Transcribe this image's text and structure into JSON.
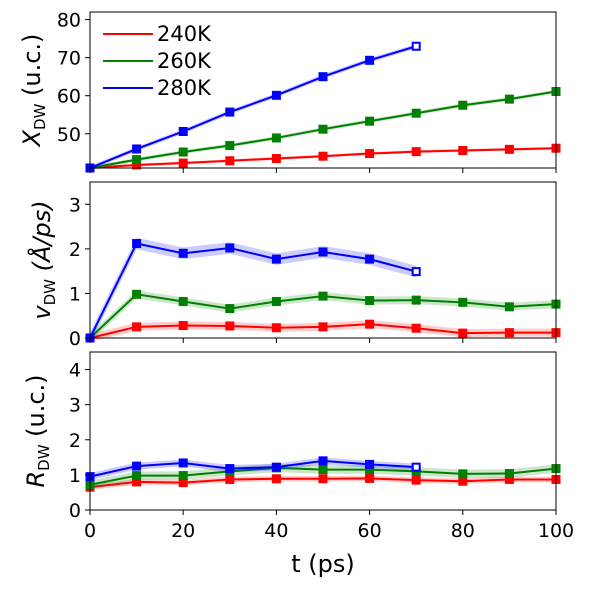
{
  "chart_data": {
    "type": "line",
    "xlabel": "t (ps)",
    "x_ticks": [
      0,
      20,
      40,
      60,
      80,
      100
    ],
    "xlim": [
      0,
      100
    ],
    "legend": {
      "placement": "top-left",
      "entries": [
        {
          "label": "240K",
          "color": "#ff0000"
        },
        {
          "label": "260K",
          "color": "#008000"
        },
        {
          "label": "280K",
          "color": "#0000ff"
        }
      ]
    },
    "panels": [
      {
        "ylabel_main": "X",
        "ylabel_sub": "DW",
        "ylabel_rest": " (u.c.)",
        "ylim": [
          41,
          82
        ],
        "y_ticks": [
          50,
          60,
          70,
          80
        ],
        "series": [
          {
            "name": "240K",
            "color": "#ff0000",
            "x": [
              0,
              10,
              20,
              30,
              40,
              50,
              60,
              70,
              80,
              90,
              100
            ],
            "y": [
              41,
              41.8,
              42.3,
              42.9,
              43.5,
              44.1,
              44.8,
              45.3,
              45.6,
              45.9,
              46.2
            ],
            "band": 0.4,
            "last_open": false
          },
          {
            "name": "260K",
            "color": "#008000",
            "x": [
              0,
              10,
              20,
              30,
              40,
              50,
              60,
              70,
              80,
              90,
              100
            ],
            "y": [
              41,
              43.2,
              45.2,
              46.9,
              48.9,
              51.2,
              53.3,
              55.4,
              57.5,
              59.1,
              61.1
            ],
            "band": 0.5,
            "last_open": false
          },
          {
            "name": "280K",
            "color": "#0000ff",
            "x": [
              0,
              10,
              20,
              30,
              40,
              50,
              60,
              70
            ],
            "y": [
              41,
              46.0,
              50.6,
              55.7,
              60.1,
              65.0,
              69.3,
              73.0
            ],
            "band": 0.6,
            "last_open": true
          }
        ]
      },
      {
        "ylabel_main": "v",
        "ylabel_sub": "DW",
        "ylabel_rest": " (Å/ps)",
        "ylim": [
          0,
          3.5
        ],
        "y_ticks": [
          0,
          1,
          2,
          3
        ],
        "series": [
          {
            "name": "240K",
            "color": "#ff0000",
            "x": [
              0,
              10,
              20,
              30,
              40,
              50,
              60,
              70,
              80,
              90,
              100
            ],
            "y": [
              0,
              0.25,
              0.28,
              0.27,
              0.23,
              0.25,
              0.31,
              0.22,
              0.11,
              0.12,
              0.12
            ],
            "band": 0.09,
            "last_open": false
          },
          {
            "name": "260K",
            "color": "#008000",
            "x": [
              0,
              10,
              20,
              30,
              40,
              50,
              60,
              70,
              80,
              90,
              100
            ],
            "y": [
              0,
              0.98,
              0.82,
              0.66,
              0.82,
              0.94,
              0.84,
              0.85,
              0.8,
              0.7,
              0.76
            ],
            "band": 0.09,
            "last_open": false
          },
          {
            "name": "280K",
            "color": "#0000ff",
            "x": [
              0,
              10,
              20,
              30,
              40,
              50,
              60,
              70
            ],
            "y": [
              0,
              2.12,
              1.9,
              2.02,
              1.77,
              1.93,
              1.77,
              1.49
            ],
            "band": 0.13,
            "last_open": true
          }
        ]
      },
      {
        "ylabel_main": "R",
        "ylabel_sub": "DW",
        "ylabel_rest": " (u.c.)",
        "ylim": [
          0,
          4.5
        ],
        "y_ticks": [
          0,
          1,
          2,
          3,
          4
        ],
        "series": [
          {
            "name": "240K",
            "color": "#ff0000",
            "x": [
              0,
              10,
              20,
              30,
              40,
              50,
              60,
              70,
              80,
              90,
              100
            ],
            "y": [
              0.65,
              0.8,
              0.78,
              0.87,
              0.89,
              0.89,
              0.9,
              0.85,
              0.82,
              0.87,
              0.87
            ],
            "band": 0.08,
            "last_open": false
          },
          {
            "name": "260K",
            "color": "#008000",
            "x": [
              0,
              10,
              20,
              30,
              40,
              50,
              60,
              70,
              80,
              90,
              100
            ],
            "y": [
              0.72,
              0.98,
              0.98,
              1.1,
              1.2,
              1.15,
              1.15,
              1.1,
              1.03,
              1.04,
              1.18
            ],
            "band": 0.12,
            "last_open": false
          },
          {
            "name": "280K",
            "color": "#0000ff",
            "x": [
              0,
              10,
              20,
              30,
              40,
              50,
              60,
              70
            ],
            "y": [
              0.95,
              1.25,
              1.34,
              1.18,
              1.22,
              1.4,
              1.3,
              1.22
            ],
            "band": 0.1,
            "last_open": true
          }
        ]
      }
    ]
  }
}
